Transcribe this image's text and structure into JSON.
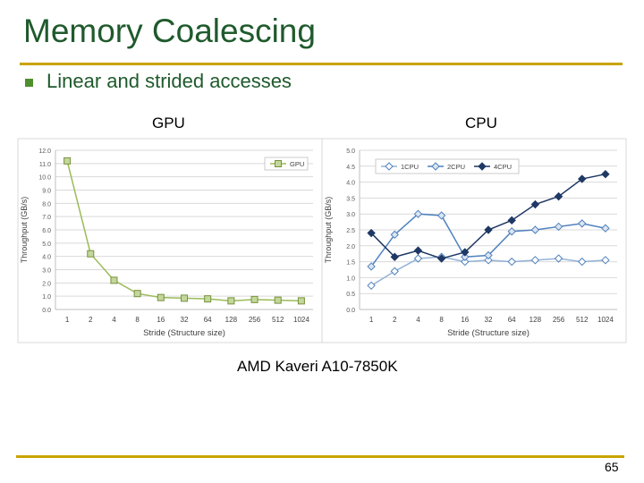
{
  "slide": {
    "title": "Memory Coalescing",
    "bullet": "Linear and strided accesses",
    "gpu_label": "GPU",
    "cpu_label": "CPU",
    "caption": "AMD Kaveri A10-7850K",
    "page_number": "65"
  },
  "colors": {
    "title": "#1f5a2c",
    "rule": "#c8a400",
    "bullet": "#4f8f2c",
    "gpu_series": "#9bbb59",
    "cpu_dark": "#1f3864",
    "cpu_light": "#4f81bd",
    "cpu_mid": "#95b3d7"
  },
  "chart_data": [
    {
      "type": "line",
      "categories": [
        "1",
        "2",
        "4",
        "8",
        "16",
        "32",
        "64",
        "128",
        "256",
        "512",
        "1024"
      ],
      "series": [
        {
          "name": "GPU",
          "values": [
            11.2,
            4.2,
            2.2,
            1.2,
            0.9,
            0.85,
            0.8,
            0.65,
            0.75,
            0.7,
            0.65
          ]
        }
      ],
      "xlabel": "Stride (Structure size)",
      "ylabel": "Throughput (GB/s)",
      "ylim": [
        0,
        12
      ],
      "yticks": [
        "0.0",
        "1.0",
        "2.0",
        "3.0",
        "4.0",
        "5.0",
        "6.0",
        "7.0",
        "8.0",
        "9.0",
        "10.0",
        "11.0",
        "12.0"
      ],
      "grid": true,
      "legend": "top-right"
    },
    {
      "type": "line",
      "categories": [
        "1",
        "2",
        "4",
        "8",
        "16",
        "32",
        "64",
        "128",
        "256",
        "512",
        "1024"
      ],
      "series": [
        {
          "name": "1CPU",
          "values": [
            0.75,
            1.2,
            1.6,
            1.65,
            1.5,
            1.55,
            1.5,
            1.55,
            1.6,
            1.5,
            1.55
          ]
        },
        {
          "name": "2CPU",
          "values": [
            1.35,
            2.35,
            3.0,
            2.95,
            1.65,
            1.7,
            2.45,
            2.5,
            2.6,
            2.7,
            2.55
          ]
        },
        {
          "name": "4CPU",
          "values": [
            2.4,
            1.65,
            1.85,
            1.6,
            1.8,
            2.5,
            2.8,
            3.3,
            3.55,
            4.1,
            4.25
          ]
        }
      ],
      "xlabel": "Stride (Structure size)",
      "ylabel": "Throughput (GB/s)",
      "ylim": [
        0,
        5
      ],
      "yticks": [
        "0.0",
        "0.5",
        "1.0",
        "1.5",
        "2.0",
        "2.5",
        "3.0",
        "3.5",
        "4.0",
        "4.5",
        "5.0"
      ],
      "grid": true,
      "legend": "top"
    }
  ]
}
